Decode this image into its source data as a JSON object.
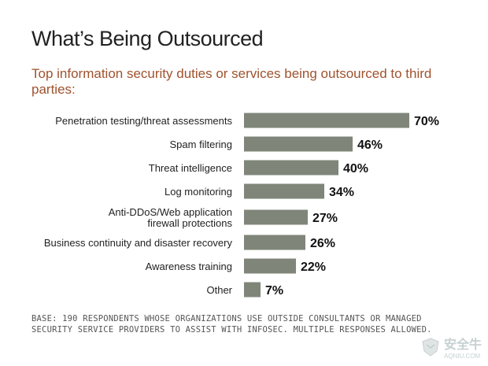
{
  "title": "What’s Being Outsourced",
  "subtitle": "Top information security duties or services being outsourced to third parties:",
  "footnote": "BASE: 190 RESPONDENTS WHOSE ORGANIZATIONS USE OUTSIDE CONSULTANTS OR MANAGED SECURITY SERVICE PROVIDERS TO ASSIST WITH INFOSEC. MULTIPLE RESPONSES ALLOWED.",
  "watermark": {
    "text": "安全牛",
    "sub": "AQNIU.COM"
  },
  "colors": {
    "bar": "#7f8679",
    "label": "#222222",
    "value": "#111111"
  },
  "chart_data": {
    "type": "bar",
    "orientation": "horizontal",
    "title": "What’s Being Outsourced",
    "subtitle": "Top information security duties or services being outsourced to third parties:",
    "categories": [
      [
        "Penetration testing/threat assessments"
      ],
      [
        "Spam filtering"
      ],
      [
        "Threat intelligence"
      ],
      [
        "Log monitoring"
      ],
      [
        "Anti-DDoS/Web application",
        "firewall protections"
      ],
      [
        "Business continuity and disaster recovery"
      ],
      [
        "Awareness training"
      ],
      [
        "Other"
      ]
    ],
    "values": [
      70,
      46,
      40,
      34,
      27,
      26,
      22,
      7
    ],
    "value_labels": [
      "70%",
      "46%",
      "40%",
      "34%",
      "27%",
      "26%",
      "22%",
      "7%"
    ],
    "unit": "%",
    "xlim": [
      0,
      100
    ],
    "grid": false,
    "legend": "none"
  }
}
